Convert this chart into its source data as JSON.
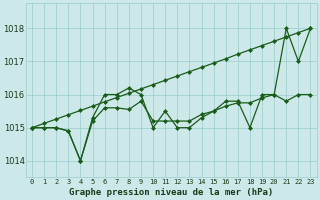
{
  "title": "Graphe pression niveau de la mer (hPa)",
  "bg_color": "#cce8e8",
  "grid_color": "#99cccc",
  "line_color": "#1a5c1a",
  "xlim": [
    -0.5,
    23.5
  ],
  "ylim": [
    1013.5,
    1018.75
  ],
  "yticks": [
    1014,
    1015,
    1016,
    1017,
    1018
  ],
  "xticks": [
    0,
    1,
    2,
    3,
    4,
    5,
    6,
    7,
    8,
    9,
    10,
    11,
    12,
    13,
    14,
    15,
    16,
    17,
    18,
    19,
    20,
    21,
    22,
    23
  ],
  "series": [
    [
      1015.0,
      1015.13,
      1015.26,
      1015.39,
      1015.52,
      1015.65,
      1015.78,
      1015.91,
      1016.04,
      1016.17,
      1016.3,
      1016.43,
      1016.56,
      1016.69,
      1016.82,
      1016.95,
      1017.08,
      1017.22,
      1017.35,
      1017.48,
      1017.61,
      1017.74,
      1017.87,
      1018.0
    ],
    [
      1015.0,
      1015.0,
      1015.0,
      1014.9,
      1014.0,
      1015.3,
      1016.0,
      1016.0,
      1016.2,
      1016.0,
      1015.0,
      1015.5,
      1015.0,
      1015.0,
      1015.3,
      1015.5,
      1015.8,
      1015.8,
      1015.0,
      1016.0,
      1016.0,
      1018.0,
      1017.0,
      1018.0
    ],
    [
      1015.0,
      1015.0,
      1015.0,
      1014.9,
      1014.0,
      1015.2,
      1015.6,
      1015.6,
      1015.55,
      1015.8,
      1015.2,
      1015.2,
      1015.2,
      1015.2,
      1015.4,
      1015.5,
      1015.65,
      1015.75,
      1015.75,
      1015.9,
      1016.0,
      1015.8,
      1016.0,
      1016.0
    ]
  ]
}
